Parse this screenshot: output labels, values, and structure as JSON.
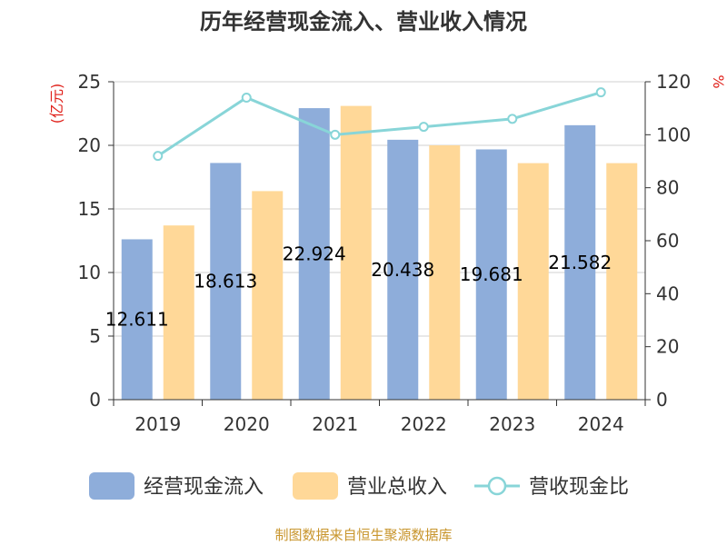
{
  "chart_data": {
    "type": "bar",
    "title": "历年经营现金流入、营业收入情况",
    "categories": [
      "2019",
      "2020",
      "2021",
      "2022",
      "2023",
      "2024"
    ],
    "y_left": {
      "unit": "(亿元)",
      "ticks": [
        "0",
        "5",
        "10",
        "15",
        "20",
        "25"
      ],
      "range": [
        0,
        25
      ]
    },
    "y_right": {
      "unit": "%",
      "ticks": [
        "0",
        "20",
        "40",
        "60",
        "80",
        "100",
        "120"
      ],
      "range": [
        0,
        120
      ]
    },
    "series": [
      {
        "name": "经营现金流入",
        "type": "bar",
        "axis": "left",
        "color": "#8eadda",
        "values": [
          12.611,
          18.613,
          22.924,
          20.438,
          19.681,
          21.582
        ],
        "labels": [
          "12.611",
          "18.613",
          "22.924",
          "20.438",
          "19.681",
          "21.582"
        ]
      },
      {
        "name": "营业总收入",
        "type": "bar",
        "axis": "left",
        "color": "#ffd898",
        "values": [
          13.7,
          16.4,
          23.1,
          20.0,
          18.6,
          18.6
        ]
      },
      {
        "name": "营收现金比",
        "type": "line",
        "axis": "right",
        "color": "#88d5d8",
        "values": [
          92,
          114,
          100,
          103,
          106,
          116
        ]
      }
    ],
    "grid": true,
    "legend_position": "bottom"
  },
  "footer": "制图数据来自恒生聚源数据库"
}
